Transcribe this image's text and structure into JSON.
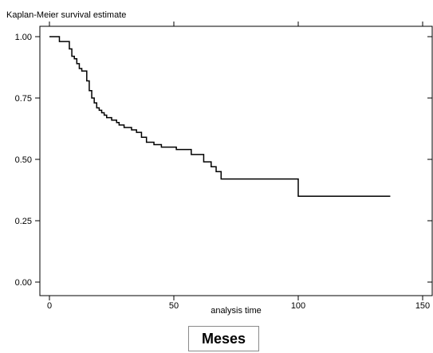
{
  "chart_data": {
    "type": "line",
    "title": "Kaplan-Meier survival estimate",
    "xlabel": "analysis time",
    "ylabel": "",
    "xlim": [
      0,
      150
    ],
    "ylim": [
      0,
      1
    ],
    "x_ticks": [
      "0",
      "50",
      "100",
      "150"
    ],
    "y_ticks": [
      "0.00",
      "0.25",
      "0.50",
      "0.75",
      "1.00"
    ],
    "grid": false,
    "series": [
      {
        "step": true,
        "x": [
          0,
          4,
          8,
          9,
          10,
          11,
          12,
          13,
          15,
          16,
          17,
          18,
          19,
          20,
          21,
          22,
          23,
          25,
          27,
          28,
          30,
          33,
          35,
          37,
          39,
          42,
          45,
          51,
          57,
          62,
          65,
          67,
          69,
          100,
          137
        ],
        "y": [
          1.0,
          0.98,
          0.95,
          0.92,
          0.91,
          0.89,
          0.87,
          0.86,
          0.82,
          0.78,
          0.75,
          0.73,
          0.71,
          0.7,
          0.69,
          0.68,
          0.67,
          0.66,
          0.65,
          0.64,
          0.63,
          0.62,
          0.61,
          0.59,
          0.57,
          0.56,
          0.55,
          0.54,
          0.52,
          0.49,
          0.47,
          0.45,
          0.42,
          0.35,
          0.35
        ]
      }
    ]
  },
  "caption": {
    "label": "Meses"
  }
}
